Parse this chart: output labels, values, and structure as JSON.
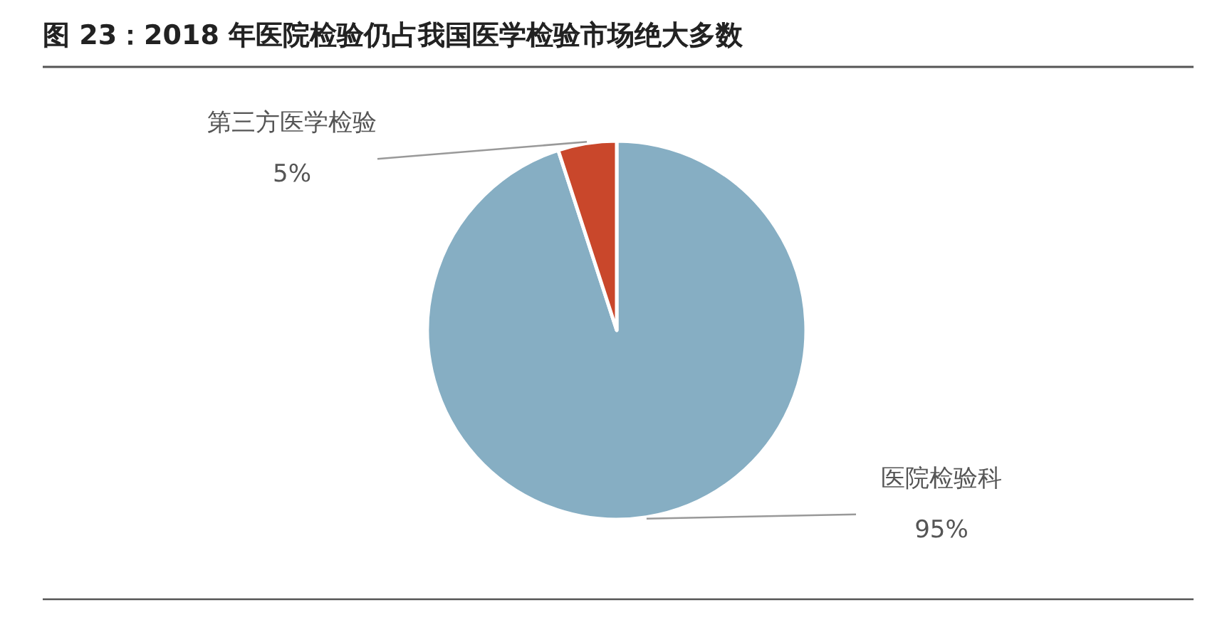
{
  "chart_data": {
    "type": "pie",
    "title": "图 23：2018 年医院检验仍占我国医学检验市场绝大多数",
    "categories": [
      "医院检验科",
      "第三方医学检验"
    ],
    "values": [
      95,
      5
    ],
    "colors": [
      "#86aec3",
      "#c9472b"
    ],
    "value_labels": [
      "95%",
      "5%"
    ]
  }
}
